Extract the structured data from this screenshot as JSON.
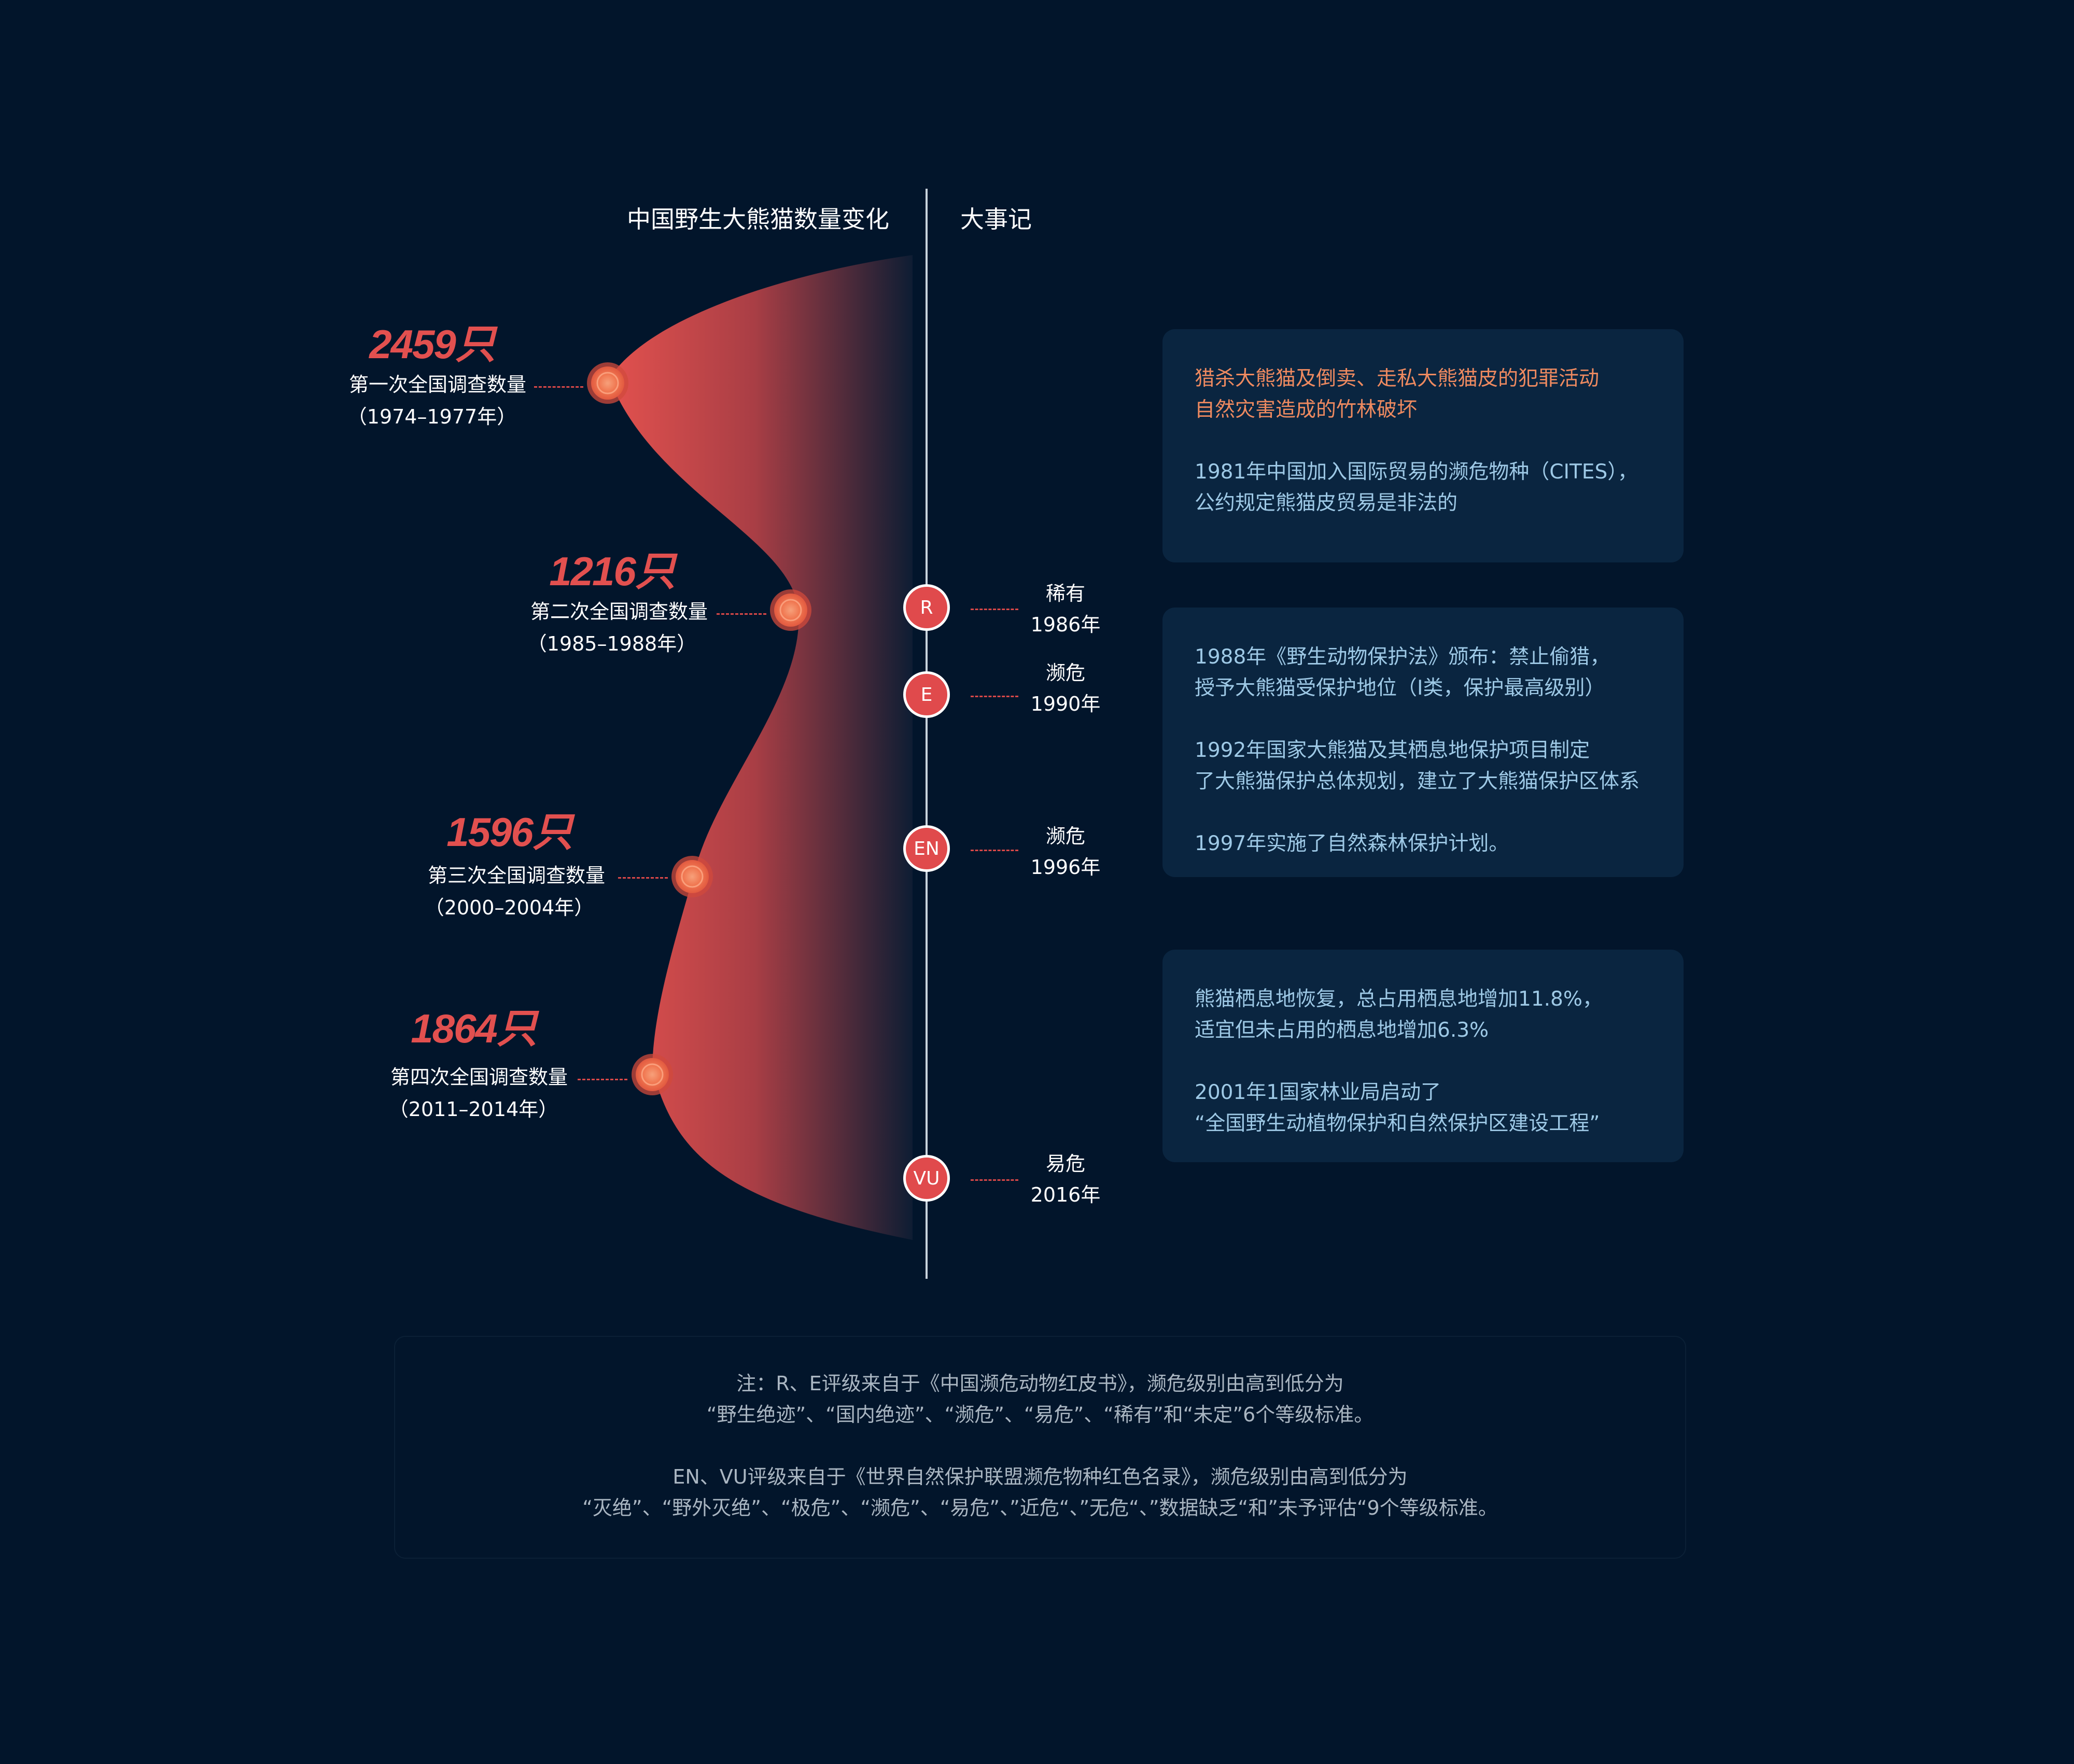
{
  "header": {
    "left_title": "中国野生大熊猫数量变化",
    "right_title": "大事记"
  },
  "colors": {
    "background": "#02152b",
    "accent_red": "#e2504f",
    "accent_orange": "#ee8a60",
    "box_text": "#9ec9e6",
    "box_bg": "#0a2540"
  },
  "surveys": [
    {
      "count": "2459只",
      "label": "第一次全国调查数量",
      "years": "（1974–1977年）"
    },
    {
      "count": "1216只",
      "label": "第二次全国调查数量",
      "years": "（1985–1988年）"
    },
    {
      "count": "1596只",
      "label": "第三次全国调查数量",
      "years": "（2000–2004年）"
    },
    {
      "count": "1864只",
      "label": "第四次全国调查数量",
      "years": "（2011–2014年）"
    }
  ],
  "ratings": [
    {
      "badge": "R",
      "status": "稀有",
      "year": "1986年"
    },
    {
      "badge": "E",
      "status": "濒危",
      "year": "1990年"
    },
    {
      "badge": "EN",
      "status": "濒危",
      "year": "1996年"
    },
    {
      "badge": "VU",
      "status": "易危",
      "year": "2016年"
    }
  ],
  "boxes": [
    {
      "lines": [
        "猎杀大熊猫及倒卖、走私大熊猫皮的犯罪活动",
        "自然灾害造成的竹林破坏",
        "",
        "1981年中国加入国际贸易的濒危物种（CITES），",
        "公约规定熊猫皮贸易是非法的"
      ]
    },
    {
      "lines": [
        "1988年《野生动物保护法》颁布：禁止偷猎，",
        "授予大熊猫受保护地位（I类，保护最高级别）",
        "",
        "1992年国家大熊猫及其栖息地保护项目制定",
        "了大熊猫保护总体规划，建立了大熊猫保护区体系",
        "",
        "1997年实施了自然森林保护计划。"
      ]
    },
    {
      "lines": [
        "熊猫栖息地恢复，总占用栖息地增加11.8%，",
        "适宜但未占用的栖息地增加6.3%",
        "",
        "2001年1国家林业局启动了",
        "“全国野生动植物保护和自然保护区建设工程”"
      ]
    }
  ],
  "note": {
    "lines": [
      "注：R、E评级来自于《中国濒危动物红皮书》，濒危级别由高到低分为",
      "“野生绝迹”、“国内绝迹”、“濒危”、“易危”、“稀有”和“未定”6个等级标准。",
      "",
      "EN、VU评级来自于《世界自然保护联盟濒危物种红色名录》，濒危级别由高到低分为",
      "“灭绝”、“野外灭绝”、“极危”、“濒危”、“易危”、”近危“、”无危“、”数据缺乏“和”未予评估“9个等级标准。"
    ]
  },
  "chart_data": {
    "type": "area",
    "title": "中国野生大熊猫数量变化",
    "categories": [
      "1974–1977年",
      "1985–1988年",
      "2000–2004年",
      "2011–2014年"
    ],
    "values": [
      2459,
      1216,
      1596,
      1864
    ],
    "unit": "只"
  }
}
